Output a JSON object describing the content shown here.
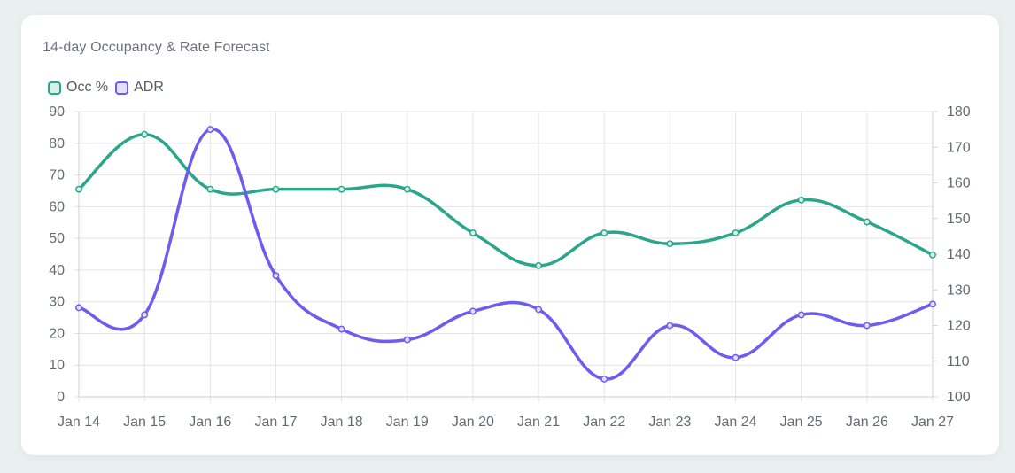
{
  "card": {
    "title": "14-day Occupancy & Rate Forecast"
  },
  "legend": [
    {
      "label": "Occ %",
      "color": "#2ca58d",
      "fill": "#d7f0ea"
    },
    {
      "label": "ADR",
      "color": "#6c5cf0",
      "fill": "#e2defc"
    }
  ],
  "chart_data": {
    "type": "line",
    "title": "14-day Occupancy & Rate Forecast",
    "categories": [
      "Jan 14",
      "Jan 15",
      "Jan 16",
      "Jan 17",
      "Jan 18",
      "Jan 19",
      "Jan 20",
      "Jan 21",
      "Jan 22",
      "Jan 23",
      "Jan 24",
      "Jan 25",
      "Jan 26",
      "Jan 27"
    ],
    "series": [
      {
        "name": "Occ %",
        "axis": "left",
        "color": "#2ca58d",
        "values": [
          65.5,
          82.8,
          65.5,
          65.5,
          65.5,
          65.5,
          51.7,
          41.4,
          51.7,
          48.3,
          51.7,
          62.1,
          55.2,
          44.8
        ]
      },
      {
        "name": "ADR",
        "axis": "right",
        "color": "#6c5cf0",
        "values": [
          125,
          123,
          175,
          134,
          119,
          116,
          124,
          124.5,
          105,
          120,
          111,
          123,
          120,
          126
        ]
      }
    ],
    "y_left": {
      "min": 0,
      "max": 90,
      "ticks": [
        0,
        10,
        20,
        30,
        40,
        50,
        60,
        70,
        80,
        90
      ]
    },
    "y_right": {
      "min": 100,
      "max": 180,
      "ticks": [
        100,
        110,
        120,
        130,
        140,
        150,
        160,
        170,
        180
      ]
    },
    "grid": true,
    "legend_position": "top-left"
  }
}
